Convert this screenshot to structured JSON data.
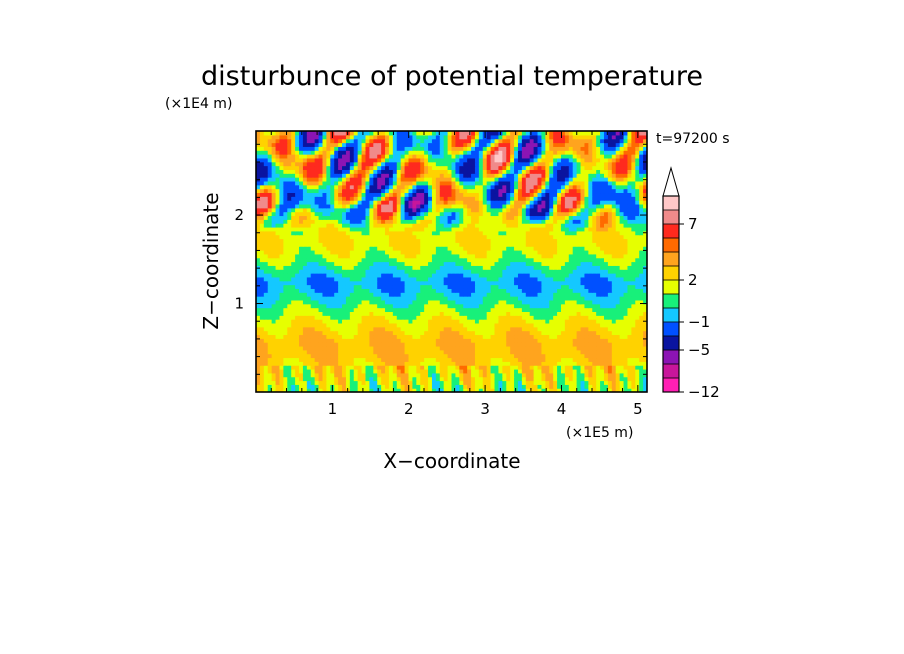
{
  "chart_data": {
    "type": "heatmap",
    "title": "disturbunce of potential temperature",
    "xlabel": "X−coordinate",
    "ylabel": "Z−coordinate",
    "x_unit": "(×1E5 m)",
    "y_unit": "(×1E4 m)",
    "time_label": "t=97200 s",
    "xlim": [
      0,
      5.12
    ],
    "ylim": [
      0,
      2.95
    ],
    "x_ticks": [
      1,
      2,
      3,
      4,
      5
    ],
    "y_ticks": [
      1,
      2
    ],
    "colorbar": {
      "levels": [
        -12,
        -9,
        -7,
        -5,
        -3,
        -1,
        0,
        1,
        2,
        3,
        4,
        5,
        7,
        9
      ],
      "colors": [
        "#ff1fb4",
        "#c8169b",
        "#8c14b4",
        "#0a14a0",
        "#0050ff",
        "#14c8ff",
        "#18f07a",
        "#e6ff00",
        "#ffd200",
        "#ffa41e",
        "#ff6a00",
        "#ff2a1e",
        "#f08a8a",
        "#ffc8c8"
      ],
      "labeled_levels": [
        -12,
        -5,
        -1,
        2,
        7
      ],
      "labels": [
        "−12",
        "−5",
        "−1",
        "2",
        "7"
      ],
      "extend": "max"
    },
    "field_profile": {
      "z": [
        0.05,
        0.2,
        0.4,
        0.55,
        0.7,
        0.85,
        1.0,
        1.15,
        1.25,
        1.4,
        1.55,
        1.7,
        1.85,
        2.0,
        2.2,
        2.4,
        2.6,
        2.8
      ],
      "mean": [
        1.2,
        2.0,
        2.8,
        3.1,
        2.4,
        1.5,
        0.4,
        -0.6,
        -0.9,
        0.2,
        1.4,
        2.0,
        1.6,
        0.8,
        0.8,
        1.2,
        1.4,
        1.2
      ]
    }
  }
}
